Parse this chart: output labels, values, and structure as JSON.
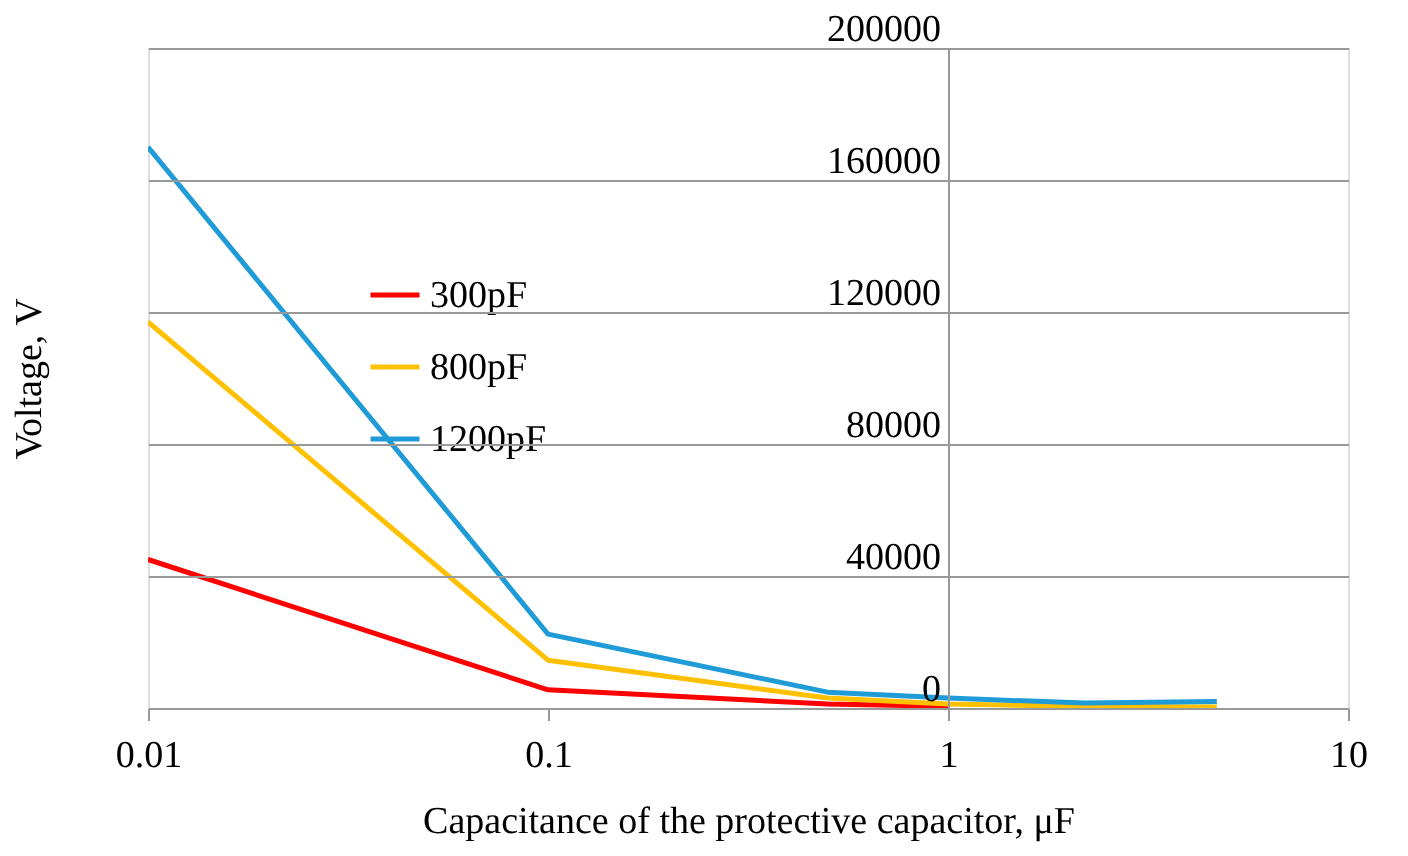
{
  "chart_data": {
    "type": "line",
    "xlabel": "Capacitance of the protective capacitor, μF",
    "ylabel": "Voltage, V",
    "x": [
      0.01,
      0.1,
      0.5,
      1,
      2.2,
      4.7
    ],
    "series": [
      {
        "name": "300pF",
        "color": "#ff0000",
        "values": [
          45000,
          5500,
          1200,
          500,
          null,
          null
        ]
      },
      {
        "name": "800pF",
        "color": "#ffc000",
        "values": [
          117000,
          14500,
          3000,
          1200,
          500,
          300
        ]
      },
      {
        "name": "1200pF",
        "color": "#1f9bd7",
        "values": [
          170000,
          22400,
          4800,
          3000,
          1500,
          2000
        ]
      }
    ],
    "log": "x",
    "xlim": [
      0.01,
      10
    ],
    "xticks": [
      0.01,
      0.1,
      1,
      10
    ],
    "ylim": [
      0,
      200000
    ],
    "yticks": [
      0,
      40000,
      80000,
      120000,
      160000,
      200000
    ],
    "grid": "y",
    "legend": "top left",
    "line_style": "solid",
    "marker": "none"
  }
}
